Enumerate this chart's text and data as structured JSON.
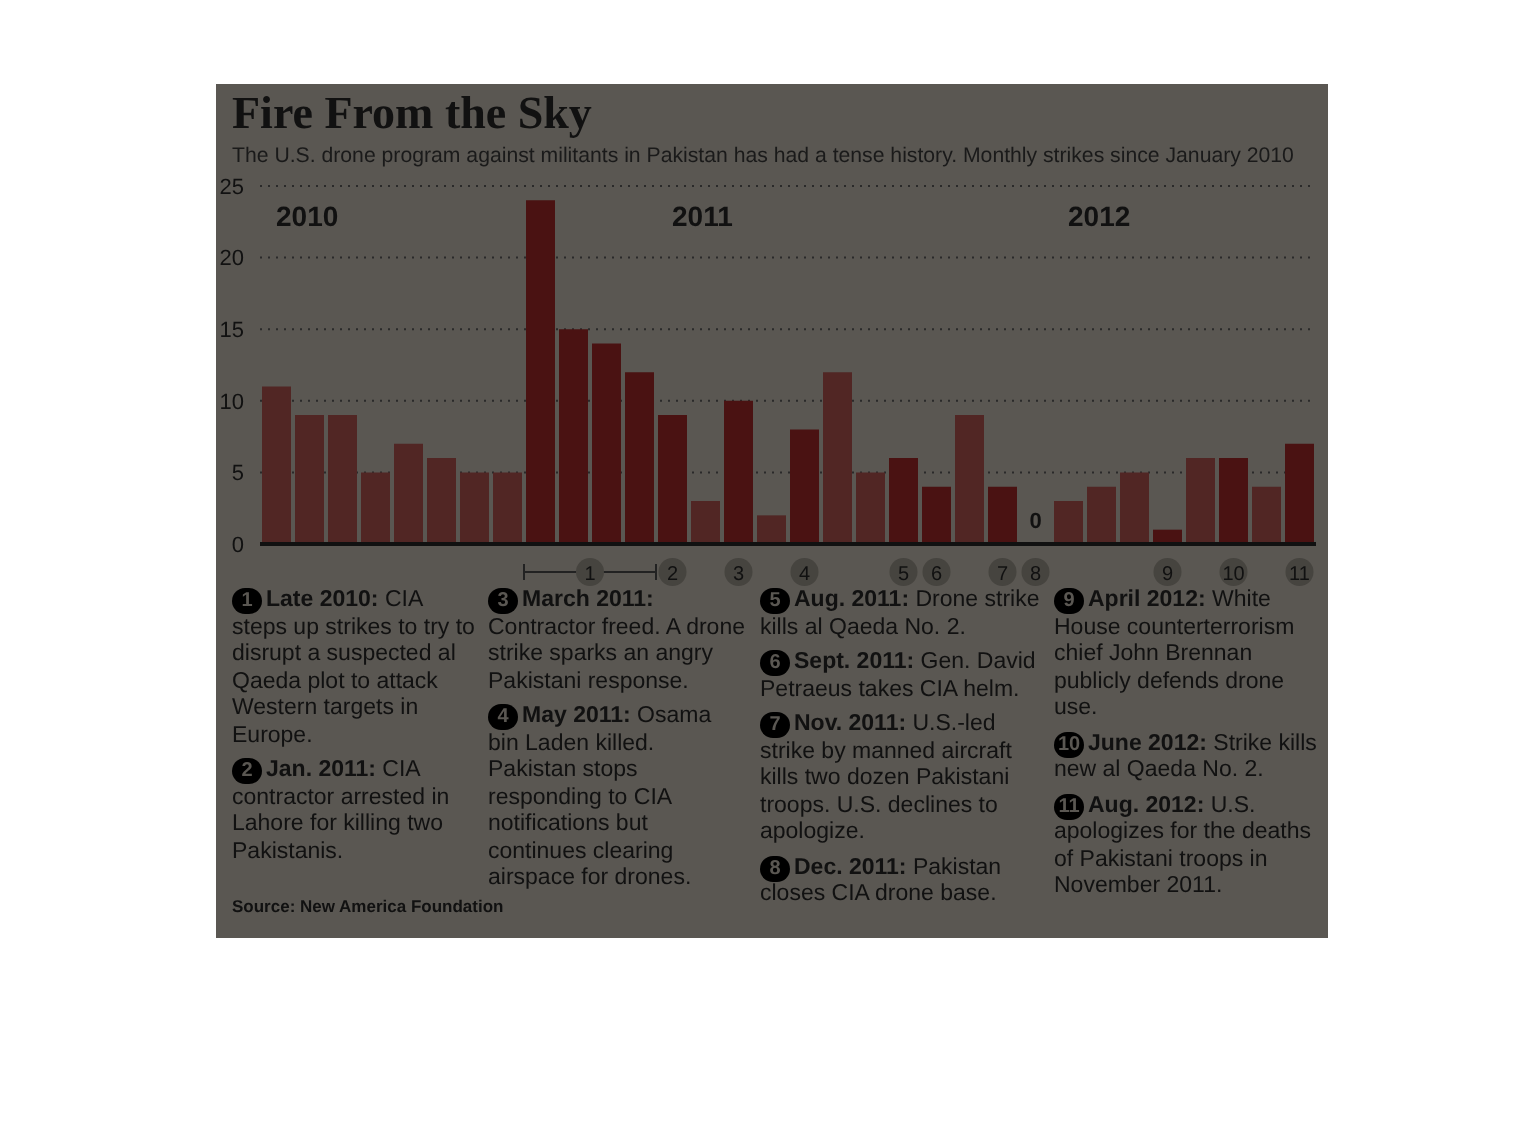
{
  "chart_data": {
    "type": "bar",
    "title": "Fire From the Sky",
    "subtitle": "The U.S. drone program against militants in Pakistan has had a tense history. Monthly strikes since January 2010",
    "categories": [
      null,
      null,
      null,
      null,
      null,
      null,
      null,
      null,
      null,
      "1",
      null,
      null,
      "2",
      null,
      "3",
      null,
      "4",
      null,
      null,
      "5",
      "6",
      null,
      "7",
      "8",
      null,
      null,
      null,
      "9",
      null,
      "10",
      null,
      "11"
    ],
    "values": [
      11,
      9,
      9,
      5,
      7,
      6,
      5,
      5,
      24,
      15,
      14,
      12,
      9,
      3,
      10,
      2,
      8,
      12,
      5,
      6,
      4,
      9,
      4,
      0,
      3,
      4,
      5,
      1,
      6,
      6,
      4,
      7
    ],
    "colors": [
      "#512624",
      "#512624",
      "#512624",
      "#512624",
      "#512624",
      "#512624",
      "#512624",
      "#512624",
      "#4a1212",
      "#4a1212",
      "#4a1212",
      "#4a1212",
      "#4a1212",
      "#512624",
      "#4a1212",
      "#512624",
      "#4a1212",
      "#512624",
      "#512624",
      "#4a1212",
      "#4a1212",
      "#512624",
      "#4a1212",
      "#4a1212",
      "#512624",
      "#512624",
      "#512624",
      "#4a1212",
      "#512624",
      "#4a1212",
      "#512624",
      "#4a1212"
    ],
    "value_labels": [
      null,
      null,
      null,
      null,
      null,
      null,
      null,
      null,
      null,
      null,
      null,
      null,
      null,
      null,
      null,
      null,
      null,
      null,
      null,
      null,
      null,
      null,
      null,
      "0",
      null,
      null,
      null,
      null,
      null,
      null,
      null,
      null
    ],
    "ylim": [
      0,
      25
    ],
    "yticks": [
      0,
      5,
      10,
      15,
      20,
      25
    ],
    "grid": "y",
    "legend": false,
    "annotations": [
      "2010",
      "2011",
      "2012",
      "1 Late 2010: CIA steps up strikes to try to disrupt a suspected al Qaeda plot to attack Western targets in Europe.",
      "2 Jan. 2011: CIA contractor arrested in Lahore for killing two Pakistanis.",
      "3 March 2011: Contractor freed. A drone strike sparks an angry Pakistani response.",
      "4 May 2011: Osama bin Laden killed. Pakistan stops responding to CIA notifications but continues clearing airspace for drones.",
      "5 Aug. 2011: Drone strike kills al Qaeda No. 2.",
      "6 Sept. 2011: Gen. David Petraeus takes CIA helm.",
      "7 Nov. 2011: U.S.-led strike by manned aircraft kills two dozen Pakistani troops. U.S. declines to apologize.",
      "8 Dec. 2011: Pakistan closes CIA drone base.",
      "9 April 2012: White House counterterrorism chief John Brennan publicly defends drone use.",
      "10 June 2012: Strike kills new al Qaeda No. 2.",
      "11 Aug. 2012: U.S. apologizes for the deaths of Pakistani troops in November 2011.",
      "Source: New America Foundation"
    ]
  }
}
